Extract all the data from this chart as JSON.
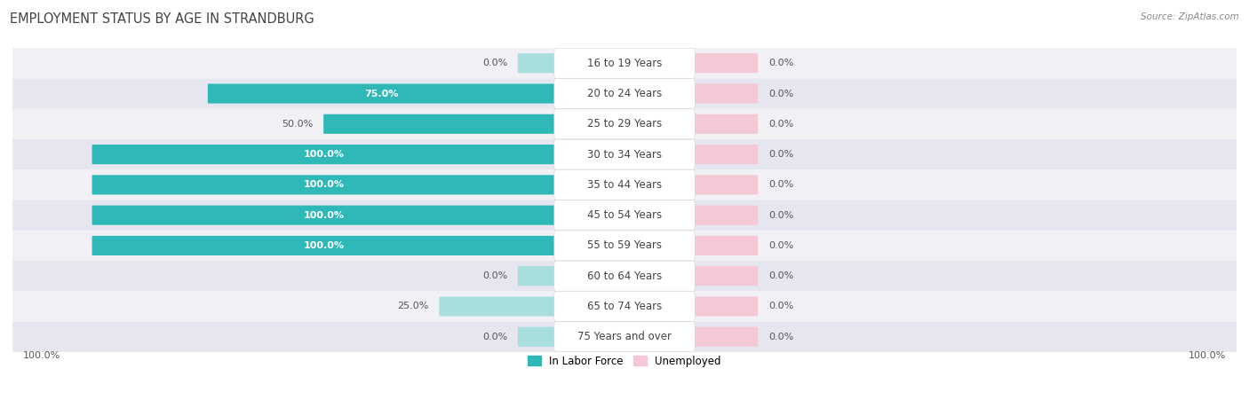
{
  "title": "EMPLOYMENT STATUS BY AGE IN STRANDBURG",
  "source": "Source: ZipAtlas.com",
  "categories": [
    "16 to 19 Years",
    "20 to 24 Years",
    "25 to 29 Years",
    "30 to 34 Years",
    "35 to 44 Years",
    "45 to 54 Years",
    "55 to 59 Years",
    "60 to 64 Years",
    "65 to 74 Years",
    "75 Years and over"
  ],
  "labor_force": [
    0.0,
    75.0,
    50.0,
    100.0,
    100.0,
    100.0,
    100.0,
    0.0,
    25.0,
    0.0
  ],
  "unemployed": [
    0.0,
    0.0,
    0.0,
    0.0,
    0.0,
    0.0,
    0.0,
    0.0,
    0.0,
    0.0
  ],
  "labor_color": "#2eb8b8",
  "labor_color_light": "#a8dede",
  "unemployed_color": "#f4a0b8",
  "unemployed_color_light": "#f4c8d4",
  "row_bg_odd": "#f0f0f5",
  "row_bg_even": "#e6e6f0",
  "label_color_dark": "#555555",
  "label_color_white": "#ffffff",
  "axis_label_left": "100.0%",
  "axis_label_right": "100.0%",
  "max_value": 100.0,
  "background_color": "#ffffff",
  "title_fontsize": 10.5,
  "label_fontsize": 8.0,
  "category_fontsize": 8.5,
  "source_fontsize": 7.5
}
